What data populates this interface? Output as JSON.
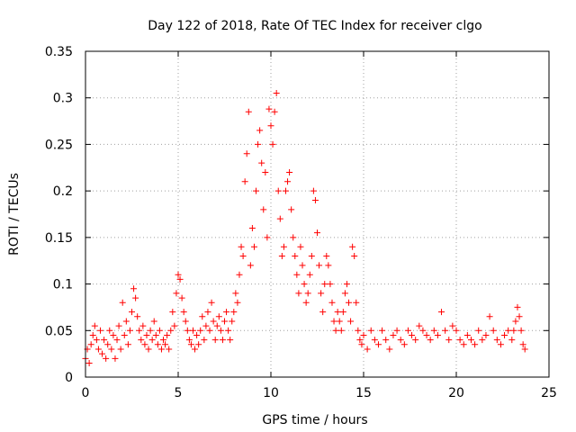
{
  "chart_data": {
    "type": "scatter",
    "title": "Day 122 of 2018, Rate Of TEC Index for receiver clgo",
    "xlabel": "GPS time / hours",
    "ylabel": "ROTI / TECUs",
    "xlim": [
      0,
      25
    ],
    "ylim": [
      0,
      0.35
    ],
    "x_ticks": [
      0,
      5,
      10,
      15,
      20,
      25
    ],
    "x_tick_labels": [
      "0",
      "5",
      "10",
      "15",
      "20",
      "25"
    ],
    "y_ticks": [
      0,
      0.05,
      0.1,
      0.15,
      0.2,
      0.25,
      0.3,
      0.35
    ],
    "y_tick_labels": [
      "0",
      "0.05",
      "0.1",
      "0.15",
      "0.2",
      "0.25",
      "0.3",
      "0.35"
    ],
    "grid": true,
    "marker": "+",
    "marker_color": "#ff0000",
    "series": [
      {
        "points": [
          [
            0.0,
            0.02
          ],
          [
            0.1,
            0.03
          ],
          [
            0.2,
            0.015
          ],
          [
            0.3,
            0.035
          ],
          [
            0.4,
            0.045
          ],
          [
            0.5,
            0.055
          ],
          [
            0.6,
            0.04
          ],
          [
            0.7,
            0.03
          ],
          [
            0.8,
            0.05
          ],
          [
            0.9,
            0.025
          ],
          [
            1.0,
            0.04
          ],
          [
            1.1,
            0.02
          ],
          [
            1.2,
            0.035
          ],
          [
            1.3,
            0.05
          ],
          [
            1.4,
            0.03
          ],
          [
            1.5,
            0.045
          ],
          [
            1.6,
            0.02
          ],
          [
            1.7,
            0.04
          ],
          [
            1.8,
            0.055
          ],
          [
            1.9,
            0.03
          ],
          [
            2.0,
            0.08
          ],
          [
            2.1,
            0.045
          ],
          [
            2.2,
            0.06
          ],
          [
            2.3,
            0.035
          ],
          [
            2.4,
            0.05
          ],
          [
            2.5,
            0.07
          ],
          [
            2.6,
            0.095
          ],
          [
            2.7,
            0.085
          ],
          [
            2.8,
            0.065
          ],
          [
            2.9,
            0.05
          ],
          [
            3.0,
            0.04
          ],
          [
            3.1,
            0.055
          ],
          [
            3.2,
            0.035
          ],
          [
            3.3,
            0.045
          ],
          [
            3.4,
            0.03
          ],
          [
            3.5,
            0.05
          ],
          [
            3.6,
            0.04
          ],
          [
            3.7,
            0.06
          ],
          [
            3.8,
            0.045
          ],
          [
            3.9,
            0.035
          ],
          [
            4.0,
            0.05
          ],
          [
            4.1,
            0.03
          ],
          [
            4.2,
            0.04
          ],
          [
            4.3,
            0.035
          ],
          [
            4.4,
            0.045
          ],
          [
            4.5,
            0.03
          ],
          [
            4.6,
            0.05
          ],
          [
            4.7,
            0.07
          ],
          [
            4.8,
            0.055
          ],
          [
            4.9,
            0.09
          ],
          [
            5.0,
            0.11
          ],
          [
            5.1,
            0.105
          ],
          [
            5.2,
            0.085
          ],
          [
            5.3,
            0.07
          ],
          [
            5.4,
            0.06
          ],
          [
            5.5,
            0.05
          ],
          [
            5.6,
            0.04
          ],
          [
            5.7,
            0.035
          ],
          [
            5.8,
            0.05
          ],
          [
            5.9,
            0.03
          ],
          [
            6.0,
            0.045
          ],
          [
            6.1,
            0.035
          ],
          [
            6.2,
            0.05
          ],
          [
            6.3,
            0.065
          ],
          [
            6.4,
            0.04
          ],
          [
            6.5,
            0.055
          ],
          [
            6.6,
            0.07
          ],
          [
            6.7,
            0.05
          ],
          [
            6.8,
            0.08
          ],
          [
            6.9,
            0.06
          ],
          [
            7.0,
            0.04
          ],
          [
            7.1,
            0.055
          ],
          [
            7.2,
            0.065
          ],
          [
            7.3,
            0.05
          ],
          [
            7.4,
            0.04
          ],
          [
            7.5,
            0.06
          ],
          [
            7.6,
            0.07
          ],
          [
            7.7,
            0.05
          ],
          [
            7.8,
            0.04
          ],
          [
            7.9,
            0.06
          ],
          [
            8.0,
            0.07
          ],
          [
            8.1,
            0.09
          ],
          [
            8.2,
            0.08
          ],
          [
            8.3,
            0.11
          ],
          [
            8.4,
            0.14
          ],
          [
            8.5,
            0.13
          ],
          [
            8.6,
            0.21
          ],
          [
            8.7,
            0.24
          ],
          [
            8.8,
            0.285
          ],
          [
            8.9,
            0.12
          ],
          [
            9.0,
            0.16
          ],
          [
            9.1,
            0.14
          ],
          [
            9.2,
            0.2
          ],
          [
            9.3,
            0.25
          ],
          [
            9.4,
            0.265
          ],
          [
            9.5,
            0.23
          ],
          [
            9.6,
            0.18
          ],
          [
            9.7,
            0.22
          ],
          [
            9.8,
            0.15
          ],
          [
            9.9,
            0.288
          ],
          [
            10.0,
            0.27
          ],
          [
            10.1,
            0.25
          ],
          [
            10.2,
            0.285
          ],
          [
            10.3,
            0.305
          ],
          [
            10.4,
            0.2
          ],
          [
            10.5,
            0.17
          ],
          [
            10.6,
            0.13
          ],
          [
            10.7,
            0.14
          ],
          [
            10.8,
            0.2
          ],
          [
            10.9,
            0.21
          ],
          [
            11.0,
            0.22
          ],
          [
            11.1,
            0.18
          ],
          [
            11.2,
            0.15
          ],
          [
            11.3,
            0.13
          ],
          [
            11.4,
            0.11
          ],
          [
            11.5,
            0.09
          ],
          [
            11.6,
            0.14
          ],
          [
            11.7,
            0.12
          ],
          [
            11.8,
            0.1
          ],
          [
            11.9,
            0.08
          ],
          [
            12.0,
            0.09
          ],
          [
            12.1,
            0.11
          ],
          [
            12.2,
            0.13
          ],
          [
            12.3,
            0.2
          ],
          [
            12.4,
            0.19
          ],
          [
            12.5,
            0.155
          ],
          [
            12.6,
            0.12
          ],
          [
            12.7,
            0.09
          ],
          [
            12.8,
            0.07
          ],
          [
            12.9,
            0.1
          ],
          [
            13.0,
            0.13
          ],
          [
            13.1,
            0.12
          ],
          [
            13.2,
            0.1
          ],
          [
            13.3,
            0.08
          ],
          [
            13.4,
            0.06
          ],
          [
            13.5,
            0.05
          ],
          [
            13.6,
            0.07
          ],
          [
            13.7,
            0.06
          ],
          [
            13.8,
            0.05
          ],
          [
            13.9,
            0.07
          ],
          [
            14.0,
            0.09
          ],
          [
            14.1,
            0.1
          ],
          [
            14.2,
            0.08
          ],
          [
            14.3,
            0.06
          ],
          [
            14.4,
            0.14
          ],
          [
            14.5,
            0.13
          ],
          [
            14.6,
            0.08
          ],
          [
            14.7,
            0.05
          ],
          [
            14.8,
            0.04
          ],
          [
            14.9,
            0.035
          ],
          [
            15.0,
            0.045
          ],
          [
            15.2,
            0.03
          ],
          [
            15.4,
            0.05
          ],
          [
            15.6,
            0.04
          ],
          [
            15.8,
            0.035
          ],
          [
            16.0,
            0.05
          ],
          [
            16.2,
            0.04
          ],
          [
            16.4,
            0.03
          ],
          [
            16.6,
            0.045
          ],
          [
            16.8,
            0.05
          ],
          [
            17.0,
            0.04
          ],
          [
            17.2,
            0.035
          ],
          [
            17.4,
            0.05
          ],
          [
            17.6,
            0.045
          ],
          [
            17.8,
            0.04
          ],
          [
            18.0,
            0.055
          ],
          [
            18.2,
            0.05
          ],
          [
            18.4,
            0.045
          ],
          [
            18.6,
            0.04
          ],
          [
            18.8,
            0.05
          ],
          [
            19.0,
            0.045
          ],
          [
            19.2,
            0.07
          ],
          [
            19.4,
            0.05
          ],
          [
            19.6,
            0.04
          ],
          [
            19.8,
            0.055
          ],
          [
            20.0,
            0.05
          ],
          [
            20.2,
            0.04
          ],
          [
            20.4,
            0.035
          ],
          [
            20.6,
            0.045
          ],
          [
            20.8,
            0.04
          ],
          [
            21.0,
            0.035
          ],
          [
            21.2,
            0.05
          ],
          [
            21.4,
            0.04
          ],
          [
            21.6,
            0.045
          ],
          [
            21.8,
            0.065
          ],
          [
            22.0,
            0.05
          ],
          [
            22.2,
            0.04
          ],
          [
            22.4,
            0.035
          ],
          [
            22.6,
            0.045
          ],
          [
            22.8,
            0.05
          ],
          [
            23.0,
            0.04
          ],
          [
            23.1,
            0.05
          ],
          [
            23.2,
            0.06
          ],
          [
            23.3,
            0.075
          ],
          [
            23.4,
            0.065
          ],
          [
            23.5,
            0.05
          ],
          [
            23.6,
            0.035
          ],
          [
            23.7,
            0.03
          ]
        ]
      }
    ]
  }
}
